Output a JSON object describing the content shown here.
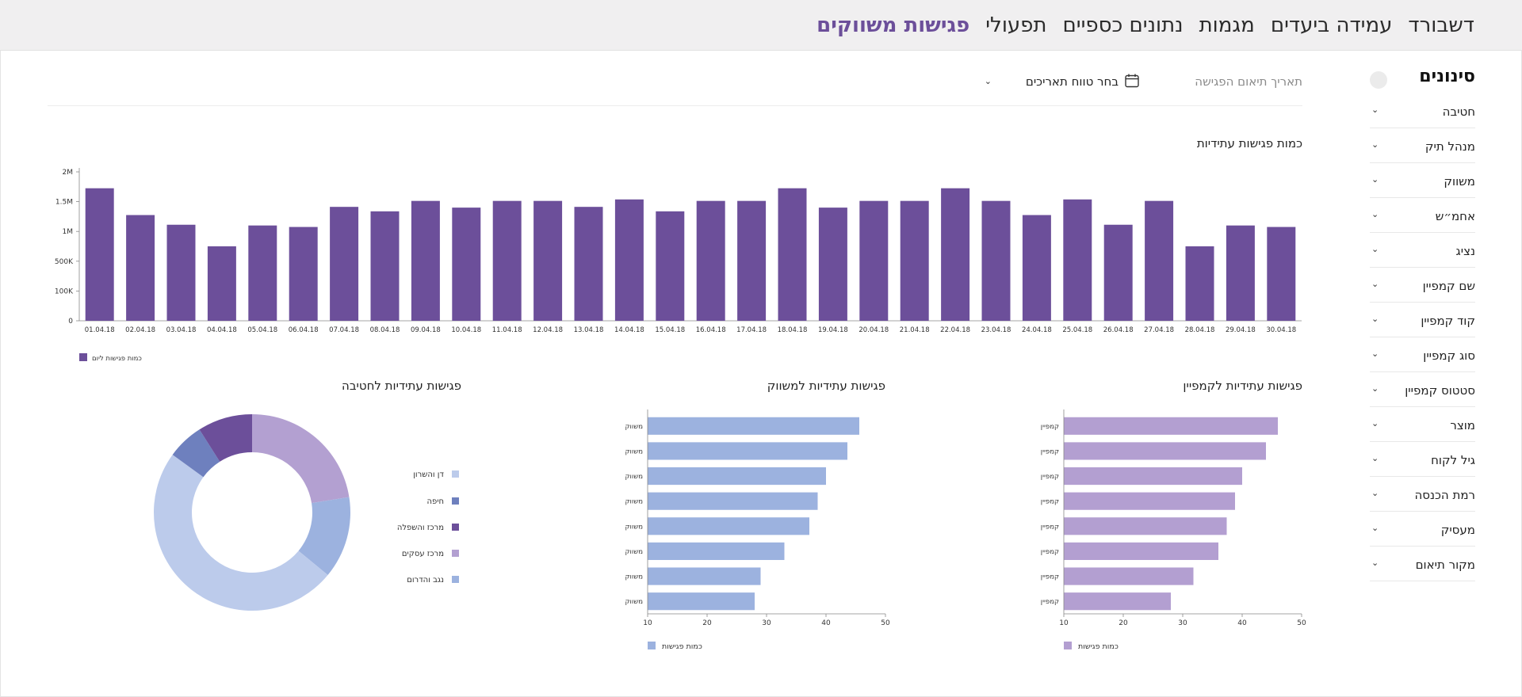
{
  "nav": {
    "items": [
      "דשבורד",
      "עמידה ביעדים",
      "מגמות",
      "נתונים כספיים",
      "תפעולי",
      "פגישות משווקים"
    ],
    "active_index": 5
  },
  "filters": {
    "title": "סינונים",
    "items": [
      "חטיבה",
      "מנהל תיק",
      "משווק",
      "אחמ״ש",
      "נציג",
      "שם קמפיין",
      "קוד קמפיין",
      "סוג קמפיין",
      "סטטוס קמפיין",
      "מוצר",
      "גיל לקוח",
      "רמת הכנסה",
      "מעסיק",
      "מקור תיאום"
    ]
  },
  "date_filter": {
    "label": "תאריך תיאום הפגישה",
    "select": "בחר טווח תאריכים"
  },
  "colors": {
    "bar": "#6c4f9a",
    "campaign_bar": "#b39fd1",
    "marketer_bar": "#9cb2df"
  },
  "chart_data": [
    {
      "type": "bar",
      "title": "כמות פגישות עתידיות",
      "categories": [
        "01.04.18",
        "02.04.18",
        "03.04.18",
        "04.04.18",
        "05.04.18",
        "06.04.18",
        "07.04.18",
        "08.04.18",
        "09.04.18",
        "10.04.18",
        "11.04.18",
        "12.04.18",
        "13.04.18",
        "14.04.18",
        "15.04.18",
        "16.04.18",
        "17.04.18",
        "18.04.18",
        "19.04.18",
        "20.04.18",
        "21.04.18",
        "22.04.18",
        "23.04.18",
        "24.04.18",
        "25.04.18",
        "26.04.18",
        "27.04.18",
        "28.04.18",
        "29.04.18",
        "30.04.18"
      ],
      "values": [
        1.78,
        1.42,
        1.29,
        1.0,
        1.28,
        1.26,
        1.53,
        1.47,
        1.61,
        1.52,
        1.61,
        1.61,
        1.53,
        1.63,
        1.47,
        1.61,
        1.61,
        1.78,
        1.52,
        1.61,
        1.61,
        1.78,
        1.61,
        1.42,
        1.63,
        1.29,
        1.61,
        1.0,
        1.28,
        1.26
      ],
      "y_ticks": [
        "0",
        "100K",
        "500K",
        "1M",
        "1.5M",
        "2M"
      ],
      "ylim": [
        0,
        2.0
      ],
      "legend": [
        "כמות פגישות ליום"
      ],
      "legend_position": "bottom-left",
      "grid": false
    },
    {
      "type": "bar",
      "orientation": "horizontal",
      "title": "פגישות עתידיות לקמפיין",
      "categories": [
        "קמפיין",
        "קמפיין",
        "קמפיין",
        "קמפיין",
        "קמפיין",
        "קמפיין",
        "קמפיין",
        "קמפיין"
      ],
      "values": [
        46,
        44,
        40,
        38.8,
        37.4,
        36,
        31.8,
        28
      ],
      "x_ticks": [
        "10",
        "20",
        "30",
        "40",
        "50"
      ],
      "xlim": [
        10,
        50
      ],
      "legend": [
        "כמות פגישות"
      ],
      "legend_position": "bottom"
    },
    {
      "type": "bar",
      "orientation": "horizontal",
      "title": "פגישות עתידיות למשווק",
      "categories": [
        "משווק",
        "משווק",
        "משווק",
        "משווק",
        "משווק",
        "משווק",
        "משווק",
        "משווק"
      ],
      "values": [
        45.6,
        43.6,
        40,
        38.6,
        37.2,
        33,
        29,
        28
      ],
      "x_ticks": [
        "10",
        "20",
        "30",
        "40",
        "50"
      ],
      "xlim": [
        10,
        50
      ],
      "legend": [
        "כמות פגישות"
      ],
      "legend_position": "bottom"
    },
    {
      "type": "pie",
      "donut": true,
      "title": "פגישות עתידיות לחטיבה",
      "slices": [
        {
          "label": "מרכז עסקים",
          "value": 22.5,
          "color": "#b3a0d1"
        },
        {
          "label": "נגב והדרום",
          "value": 13.5,
          "color": "#9cb2df"
        },
        {
          "label": "דן והשרון",
          "value": 49,
          "color": "#bccbeb"
        },
        {
          "label": "חיפה",
          "value": 6,
          "color": "#6e80be"
        },
        {
          "label": "מרכז והשפלה",
          "value": 9,
          "color": "#6c4f9a"
        }
      ],
      "legend": [
        "דן והשרון",
        "חיפה",
        "מרכז והשפלה",
        "מרכז עסקים",
        "נגב והדרום"
      ],
      "legend_position": "right"
    }
  ]
}
